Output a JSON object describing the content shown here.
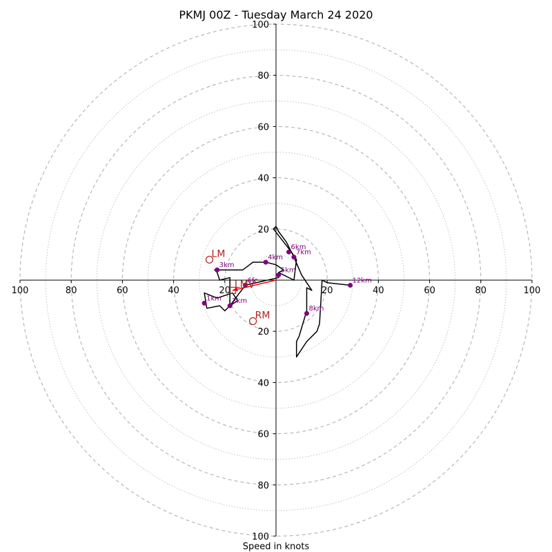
{
  "chart_data": {
    "type": "scatter",
    "title": "PKMJ 00Z - Tuesday March 24 2020",
    "xlabel": "Speed in knots",
    "ylabel": "",
    "xlim": [
      -100,
      100
    ],
    "ylim": [
      -100,
      100
    ],
    "rings": [
      10,
      20,
      30,
      40,
      50,
      60,
      70,
      80,
      90,
      100
    ],
    "x_tick_labels": [
      "100",
      "80",
      "60",
      "40",
      "20",
      "20",
      "40",
      "60",
      "80",
      "100"
    ],
    "x_tick_values": [
      -100,
      -80,
      -60,
      -40,
      -20,
      20,
      40,
      60,
      80,
      100
    ],
    "y_tick_labels": [
      "100",
      "80",
      "60",
      "40",
      "20",
      "20",
      "40",
      "60",
      "80",
      "100"
    ],
    "y_tick_values": [
      100,
      80,
      60,
      40,
      20,
      -20,
      -40,
      -60,
      -80,
      -100
    ],
    "hodograph": [
      [
        1,
        3
      ],
      [
        1,
        1
      ],
      [
        -12,
        -2
      ],
      [
        -18,
        -10
      ],
      [
        -20,
        -12
      ],
      [
        -22,
        -10
      ],
      [
        -27,
        -11
      ],
      [
        -28,
        -5
      ],
      [
        -23,
        -7
      ],
      [
        -17,
        -5
      ],
      [
        -15,
        -8
      ],
      [
        -18,
        -10
      ],
      [
        -18,
        1
      ],
      [
        -22,
        0
      ],
      [
        -23,
        3
      ],
      [
        -24,
        4
      ],
      [
        -13,
        4
      ],
      [
        -9,
        7
      ],
      [
        -4,
        7
      ],
      [
        0,
        6
      ],
      [
        3,
        4
      ],
      [
        1,
        3
      ],
      [
        7,
        0
      ],
      [
        8,
        8
      ],
      [
        6,
        11
      ],
      [
        4,
        15
      ],
      [
        1,
        19
      ],
      [
        0,
        21
      ],
      [
        -1,
        20
      ],
      [
        6,
        11
      ],
      [
        7,
        9
      ],
      [
        10,
        2
      ],
      [
        14,
        -4
      ],
      [
        12,
        -3
      ],
      [
        12,
        -12
      ],
      [
        9,
        -22
      ],
      [
        8,
        -24
      ],
      [
        8,
        -25
      ],
      [
        8,
        -27
      ],
      [
        8,
        -30
      ],
      [
        12,
        -24
      ],
      [
        16,
        -20
      ],
      [
        17,
        -17
      ],
      [
        18,
        0
      ],
      [
        20,
        -1
      ],
      [
        29,
        -2
      ]
    ],
    "height_markers": [
      {
        "label": "1km",
        "x": -28,
        "y": -9
      },
      {
        "label": "2km",
        "x": -18,
        "y": -10
      },
      {
        "label": "3km",
        "x": -23,
        "y": 4
      },
      {
        "label": "4km",
        "x": -4,
        "y": 7
      },
      {
        "label": "5km",
        "x": 1,
        "y": 2
      },
      {
        "label": "6km",
        "x": 5,
        "y": 11
      },
      {
        "label": "7km",
        "x": 7,
        "y": 9
      },
      {
        "label": "8km",
        "x": 12,
        "y": -13
      },
      {
        "label": "12km",
        "x": 29,
        "y": -2
      },
      {
        "label": "6fc",
        "x": -12,
        "y": -2
      }
    ],
    "storm_motion": [
      {
        "label": "LM",
        "x": -26,
        "y": 8
      },
      {
        "label": "RM",
        "x": -9,
        "y": -16
      },
      {
        "label": "LMV",
        "x": -17,
        "y": -4
      }
    ],
    "shear_vector": {
      "x1": 0,
      "y1": 0,
      "x2": -17,
      "y2": -4
    },
    "colors": {
      "hodograph": "#000000",
      "markers": "#800080",
      "storm": "#b22222",
      "shear": "#ff0000",
      "rings": "#b0b0b0"
    }
  }
}
